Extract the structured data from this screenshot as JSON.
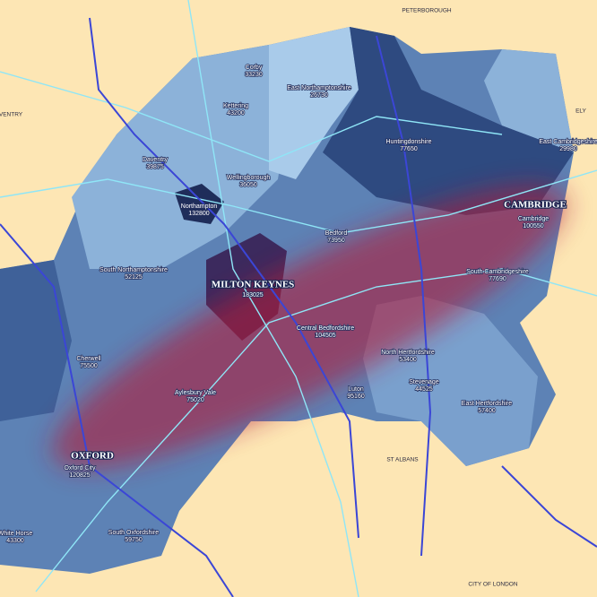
{
  "districts": [
    {
      "name": "Corby",
      "value": "33230"
    },
    {
      "name": "East Northamptonshire",
      "value": "26730"
    },
    {
      "name": "Kettering",
      "value": "43200"
    },
    {
      "name": "Daventry",
      "value": "39875"
    },
    {
      "name": "Huntingdonshire",
      "value": "77650"
    },
    {
      "name": "East Cambridgeshire",
      "value": "29980"
    },
    {
      "name": "Wellingborough",
      "value": "36050"
    },
    {
      "name": "Northampton",
      "value": "132800"
    },
    {
      "name": "Cambridge",
      "value": "100550"
    },
    {
      "name": "Bedford",
      "value": "73950"
    },
    {
      "name": "South Northamptonshire",
      "value": "52125"
    },
    {
      "name": "MILTON KEYNES",
      "value": "183025"
    },
    {
      "name": "South Cambridgeshire",
      "value": "77690"
    },
    {
      "name": "Central Bedfordshire",
      "value": "104505"
    },
    {
      "name": "Cherwell",
      "value": "75500"
    },
    {
      "name": "North Hertfordshire",
      "value": "53400"
    },
    {
      "name": "Stevenage",
      "value": "44525"
    },
    {
      "name": "Aylesbury Vale",
      "value": "75020"
    },
    {
      "name": "Luton",
      "value": "95160"
    },
    {
      "name": "East Hertfordshire",
      "value": "57400"
    },
    {
      "name": "Oxford City",
      "value": "120825"
    },
    {
      "name": "White Horse",
      "value": "43300"
    },
    {
      "name": "South Oxfordshire",
      "value": "59750"
    }
  ],
  "cities": [
    "CAMBRIDGE",
    "OXFORD"
  ],
  "towns": [
    "PETERBOROUGH",
    "ELY",
    "VENTRY",
    "ST ALBANS",
    "CITY OF LONDON"
  ]
}
